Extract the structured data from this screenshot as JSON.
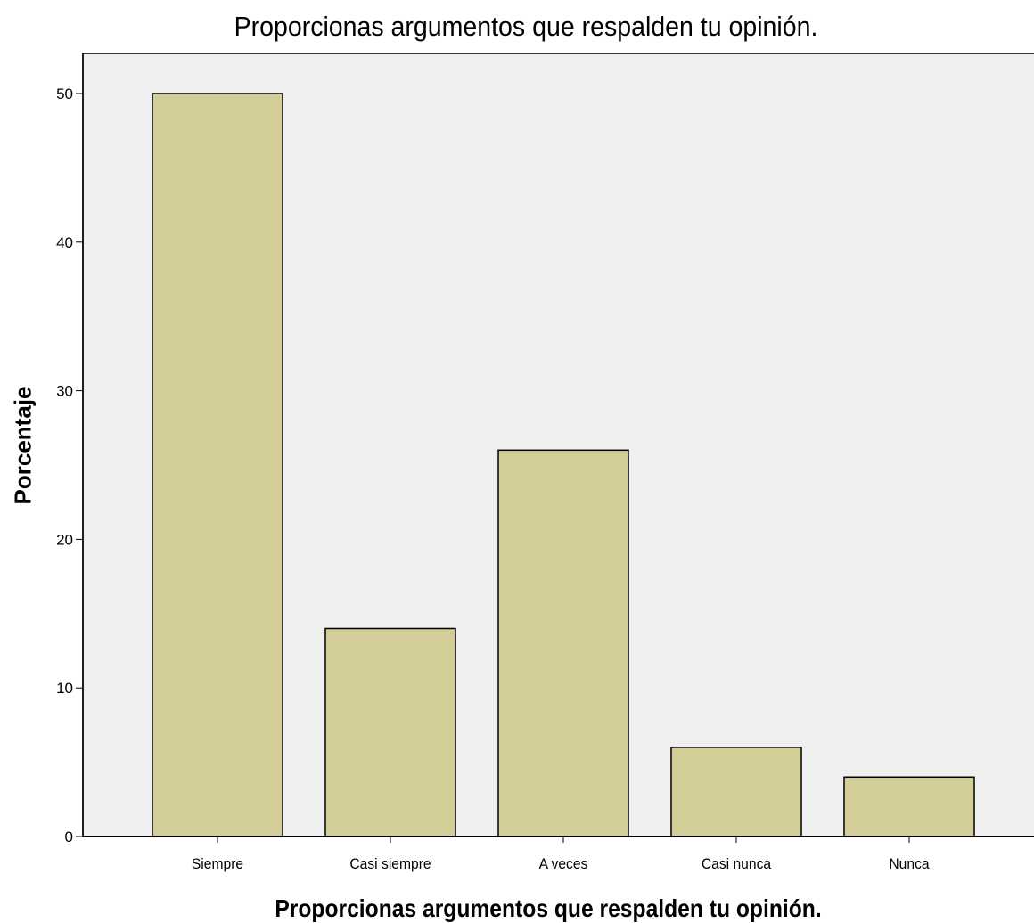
{
  "chart_data": {
    "type": "bar",
    "title": "Proporcionas argumentos que respalden tu opinión.",
    "xlabel": "Proporcionas argumentos que respalden tu opinión.",
    "ylabel": "Porcentaje",
    "categories": [
      "Siempre",
      "Casi siempre",
      "A veces",
      "Casi nunca",
      "Nunca"
    ],
    "values": [
      50,
      14,
      26,
      6,
      4
    ],
    "ylim": [
      0,
      52.7
    ],
    "yticks": [
      "0",
      "10",
      "20",
      "30",
      "40",
      "50"
    ],
    "grid": false,
    "colors": {
      "bar_fill": "#d3cd97",
      "bar_stroke": "#000000",
      "plot_background": "#efefef"
    }
  }
}
